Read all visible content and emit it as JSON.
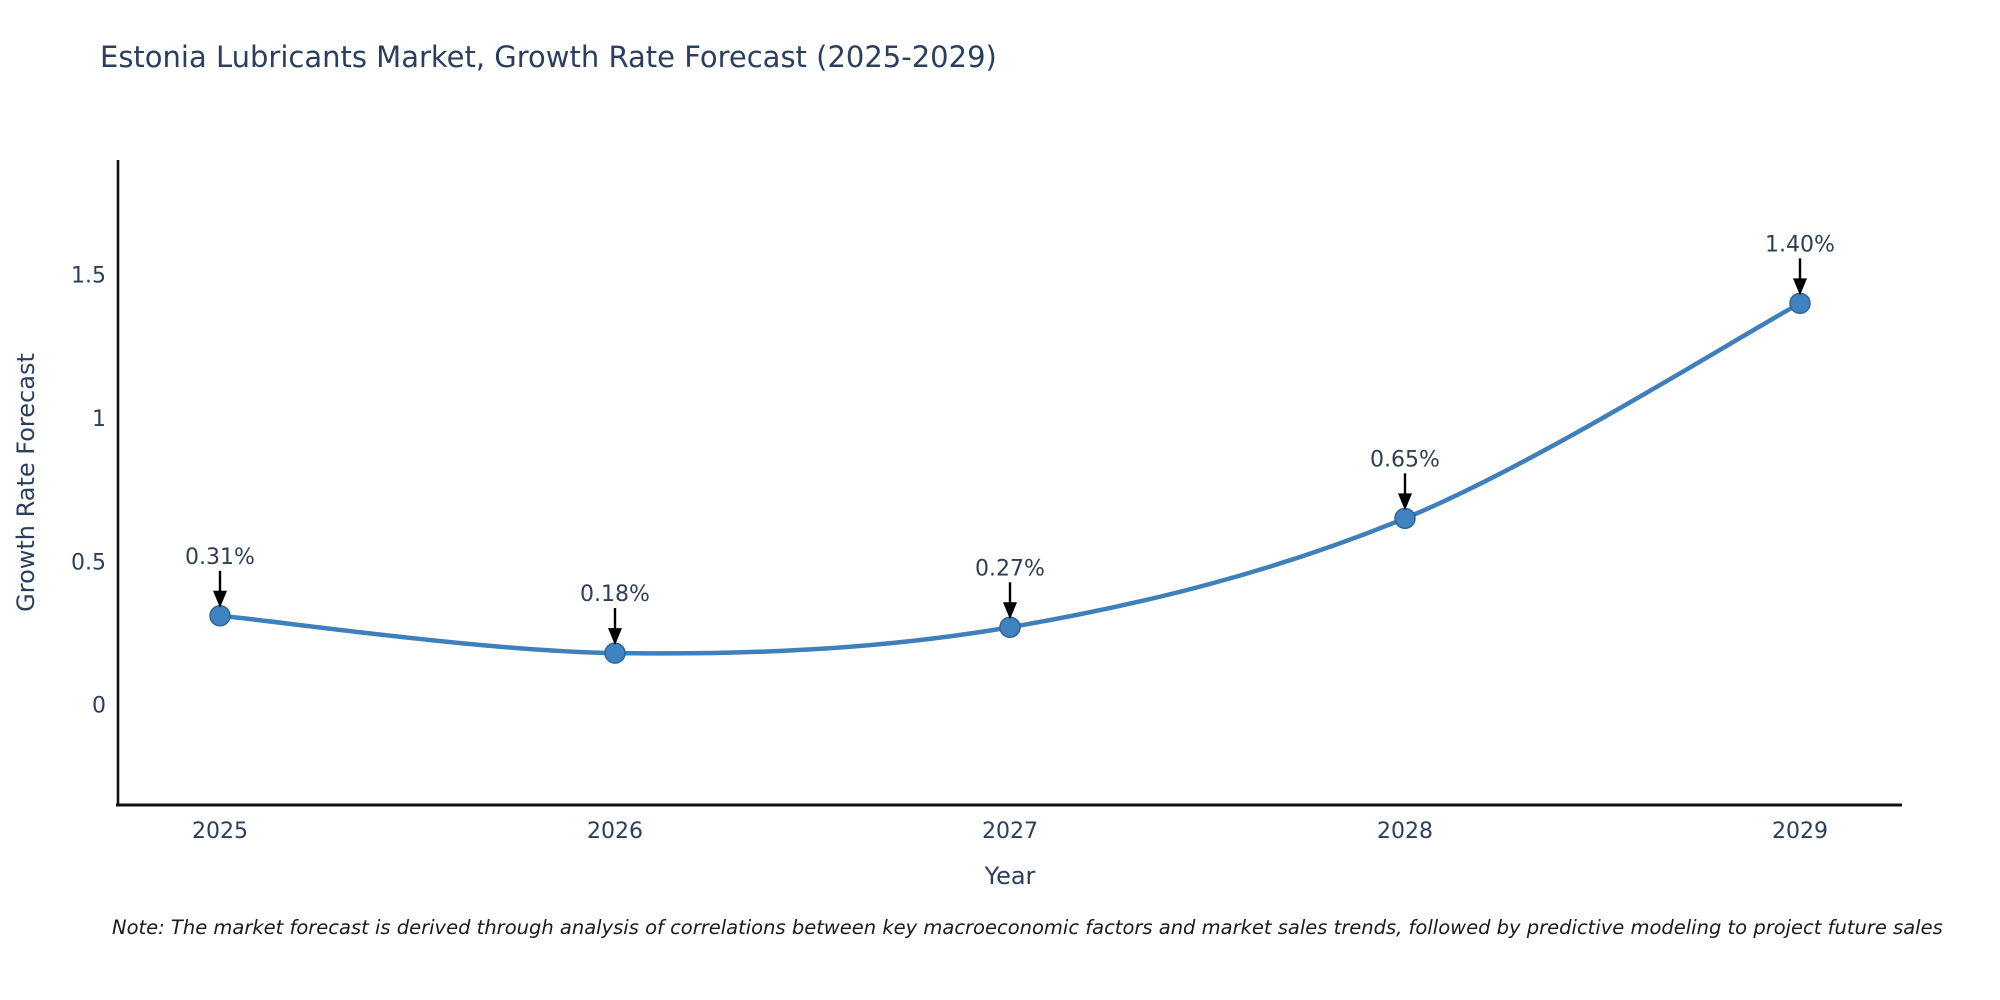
{
  "title": {
    "text": "Estonia Lubricants Market, Growth Rate Forecast (2025-2029)",
    "color": "#2a3f5f"
  },
  "note": {
    "text": "Note: The market forecast is derived through analysis of correlations between key macroeconomic factors and market sales trends, followed by predictive modeling to project future sales"
  },
  "chart_data": {
    "type": "line",
    "title": "Estonia Lubricants Market, Growth Rate Forecast (2025-2029)",
    "xlabel": "Year",
    "ylabel": "Growth Rate Forecast",
    "categories": [
      "2025",
      "2026",
      "2027",
      "2028",
      "2029"
    ],
    "values": [
      0.31,
      0.18,
      0.27,
      0.65,
      1.4
    ],
    "point_labels": [
      "0.31%",
      "0.18%",
      "0.27%",
      "0.65%",
      "1.40%"
    ],
    "yticks": [
      0,
      0.5,
      1,
      1.5
    ],
    "ytick_labels": [
      "0",
      "0.5",
      "1",
      "1.5"
    ],
    "ylim": [
      -0.35,
      1.9
    ],
    "grid": false,
    "legend_position": "none",
    "curve": "spline",
    "annotation_arrows": true,
    "colors": {
      "line": "#3f7fba",
      "marker_fill": "#3f84c1",
      "marker_edge": "#2f6697",
      "axis": "#111111",
      "tick_text": "#2a3f5f",
      "annotation_text": "#2e3f53",
      "arrow": "#000000"
    }
  }
}
